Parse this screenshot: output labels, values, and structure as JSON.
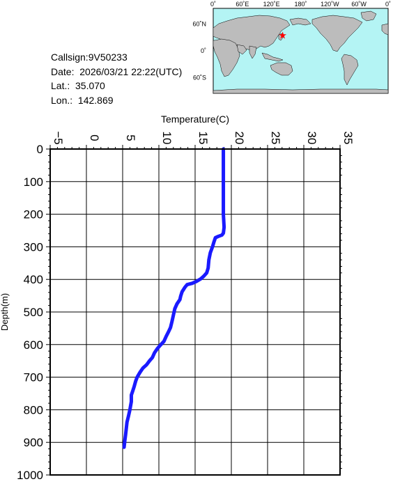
{
  "info": {
    "callsign": "Callsign:9V50233",
    "date": "Date:  2026/03/21 22:22(UTC)",
    "lat": "Lat.:  35.070",
    "lon": "Lon.:  142.869"
  },
  "map": {
    "top_labels": [
      "0˚",
      "60˚E",
      "120˚E",
      "180˚",
      "120˚W",
      "60˚W",
      "0˚"
    ],
    "left_labels": [
      "60˚N",
      "0˚",
      "60˚S"
    ],
    "colors": {
      "ocean": "#b4f4f4",
      "land": "#bcbcbc",
      "marker": "#ff0000"
    },
    "marker": {
      "lat": 35.07,
      "lon": 142.869
    }
  },
  "chart_data": {
    "type": "line",
    "xlabel": "Temperature(C)",
    "ylabel": "Depth(m)",
    "xlim": [
      -5,
      35
    ],
    "ylim": [
      0,
      1000
    ],
    "y_inverted": true,
    "x_axis_position": "top",
    "grid": true,
    "xticks": [
      "-5",
      "0",
      "5",
      "10",
      "15",
      "20",
      "25",
      "30",
      "35"
    ],
    "yticks": [
      "0",
      "100",
      "200",
      "300",
      "400",
      "500",
      "600",
      "700",
      "800",
      "900",
      "1000"
    ],
    "series_color": "#1a1aff",
    "series": [
      {
        "points": [
          [
            18.9,
            0
          ],
          [
            18.9,
            50
          ],
          [
            18.9,
            100
          ],
          [
            18.9,
            150
          ],
          [
            18.9,
            200
          ],
          [
            19.0,
            240
          ],
          [
            18.9,
            258
          ],
          [
            18.7,
            264
          ],
          [
            18.2,
            268
          ],
          [
            17.8,
            272
          ],
          [
            17.6,
            285
          ],
          [
            17.4,
            300
          ],
          [
            17.1,
            318
          ],
          [
            16.9,
            340
          ],
          [
            16.8,
            365
          ],
          [
            16.6,
            380
          ],
          [
            16.2,
            390
          ],
          [
            15.8,
            398
          ],
          [
            15.2,
            406
          ],
          [
            14.6,
            412
          ],
          [
            13.9,
            416
          ],
          [
            13.6,
            424
          ],
          [
            13.2,
            438
          ],
          [
            13.0,
            452
          ],
          [
            12.9,
            462
          ],
          [
            12.5,
            475
          ],
          [
            12.2,
            490
          ],
          [
            12.0,
            510
          ],
          [
            11.8,
            530
          ],
          [
            11.6,
            548
          ],
          [
            11.3,
            562
          ],
          [
            11.0,
            575
          ],
          [
            10.7,
            590
          ],
          [
            10.2,
            602
          ],
          [
            9.8,
            612
          ],
          [
            9.4,
            625
          ],
          [
            9.1,
            640
          ],
          [
            8.7,
            650
          ],
          [
            8.3,
            662
          ],
          [
            7.8,
            672
          ],
          [
            7.4,
            685
          ],
          [
            7.0,
            700
          ],
          [
            6.8,
            712
          ],
          [
            6.6,
            728
          ],
          [
            6.4,
            742
          ],
          [
            6.2,
            755
          ],
          [
            6.2,
            775
          ],
          [
            6.0,
            800
          ],
          [
            5.8,
            820
          ],
          [
            5.6,
            838
          ],
          [
            5.5,
            858
          ],
          [
            5.4,
            878
          ],
          [
            5.3,
            895
          ],
          [
            5.2,
            915
          ]
        ]
      }
    ]
  }
}
